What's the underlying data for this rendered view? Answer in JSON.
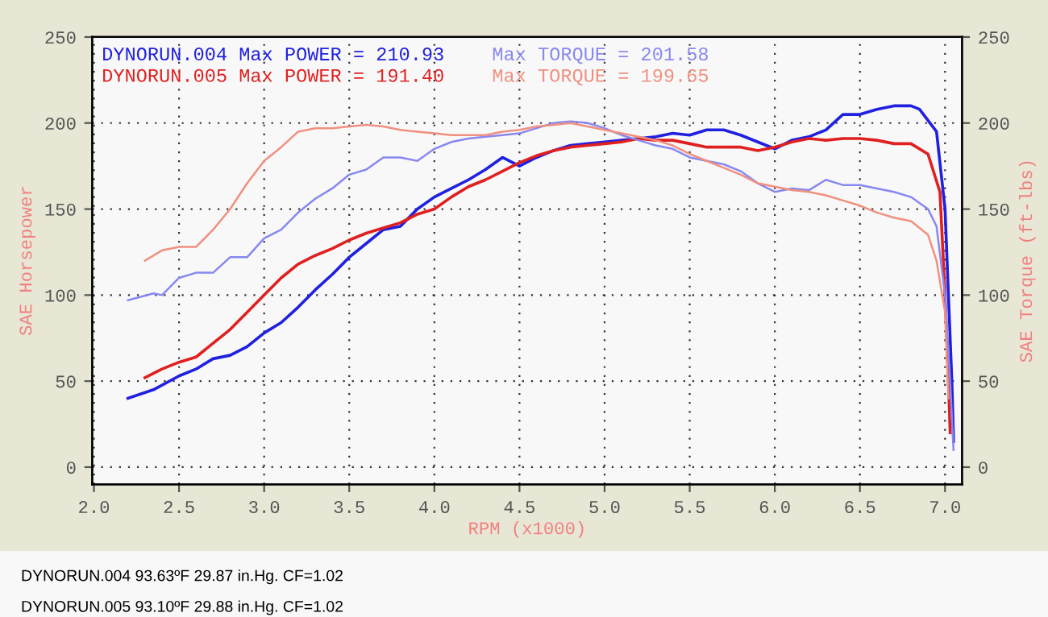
{
  "chart_data": {
    "type": "line",
    "xlabel": "RPM (x1000)",
    "ylabel": "SAE Horsepower",
    "y2label": "SAE Torque (ft-lbs)",
    "xlim": [
      1.99,
      7.1
    ],
    "ylim": [
      -10,
      250
    ],
    "y2lim": [
      -10,
      250
    ],
    "xticks": [
      {
        "value": 2,
        "label": "2.0"
      },
      {
        "value": 2.5,
        "label": "2.5"
      },
      {
        "value": 3,
        "label": "3.0"
      },
      {
        "value": 3.5,
        "label": "3.5"
      },
      {
        "value": 4,
        "label": "4.0"
      },
      {
        "value": 4.5,
        "label": "4.5"
      },
      {
        "value": 5,
        "label": "5.0"
      },
      {
        "value": 5.5,
        "label": "5.5"
      },
      {
        "value": 6,
        "label": "6.0"
      },
      {
        "value": 6.5,
        "label": "6.5"
      },
      {
        "value": 7,
        "label": "7.0"
      }
    ],
    "yticks": [
      0,
      50,
      100,
      150,
      200,
      250
    ],
    "y2ticks": [
      0,
      50,
      100,
      150,
      200,
      250
    ],
    "grid": true,
    "legend": "top left",
    "line_style": "solid",
    "marker": "none",
    "series": [
      {
        "name": "DYNORUN.004 Max POWER = 210.93",
        "color": "#2020e0",
        "x": [
          2.2,
          2.35,
          2.5,
          2.6,
          2.7,
          2.8,
          2.9,
          3.0,
          3.1,
          3.2,
          3.3,
          3.4,
          3.5,
          3.6,
          3.7,
          3.8,
          3.9,
          4.0,
          4.1,
          4.2,
          4.3,
          4.4,
          4.5,
          4.6,
          4.7,
          4.8,
          4.9,
          5.0,
          5.1,
          5.2,
          5.3,
          5.4,
          5.5,
          5.6,
          5.7,
          5.8,
          5.9,
          6.0,
          6.1,
          6.2,
          6.3,
          6.4,
          6.5,
          6.6,
          6.7,
          6.8,
          6.85,
          6.95,
          7.0,
          7.02,
          7.04,
          7.05
        ],
        "values": [
          40,
          45,
          53,
          57,
          63,
          65,
          70,
          78,
          84,
          93,
          103,
          112,
          122,
          130,
          138,
          140,
          150,
          157,
          162,
          167,
          173,
          180,
          175,
          180,
          184,
          187,
          188,
          189,
          190,
          191,
          192,
          194,
          193,
          196,
          196,
          193,
          189,
          185,
          190,
          192,
          196,
          205,
          205,
          208,
          210,
          210,
          208,
          195,
          150,
          100,
          50,
          15
        ]
      },
      {
        "name": "DYNORUN.005 Max POWER = 191.40",
        "color": "#e02020",
        "x": [
          2.3,
          2.4,
          2.5,
          2.6,
          2.7,
          2.8,
          2.9,
          3.0,
          3.1,
          3.2,
          3.3,
          3.4,
          3.5,
          3.6,
          3.7,
          3.8,
          3.9,
          4.0,
          4.1,
          4.2,
          4.3,
          4.4,
          4.5,
          4.6,
          4.7,
          4.8,
          4.9,
          5.0,
          5.1,
          5.2,
          5.3,
          5.4,
          5.5,
          5.6,
          5.7,
          5.8,
          5.9,
          6.0,
          6.1,
          6.2,
          6.3,
          6.4,
          6.5,
          6.6,
          6.7,
          6.8,
          6.9,
          6.97,
          7.0,
          7.02,
          7.03
        ],
        "values": [
          52,
          57,
          61,
          64,
          72,
          80,
          90,
          100,
          110,
          118,
          123,
          127,
          132,
          136,
          139,
          142,
          147,
          150,
          157,
          163,
          167,
          172,
          177,
          181,
          184,
          186,
          187,
          188,
          189,
          191,
          190,
          190,
          188,
          186,
          186,
          186,
          184,
          186,
          189,
          191,
          190,
          191,
          191,
          190,
          188,
          188,
          182,
          160,
          100,
          50,
          20
        ]
      },
      {
        "name": "Max TORQUE = 201.58",
        "color": "#8888f0",
        "axis": "y2",
        "x": [
          2.2,
          2.35,
          2.4,
          2.5,
          2.6,
          2.7,
          2.8,
          2.9,
          3.0,
          3.1,
          3.2,
          3.3,
          3.4,
          3.5,
          3.6,
          3.7,
          3.8,
          3.9,
          4.0,
          4.1,
          4.2,
          4.3,
          4.4,
          4.5,
          4.6,
          4.7,
          4.8,
          4.9,
          5.0,
          5.1,
          5.2,
          5.3,
          5.4,
          5.5,
          5.6,
          5.7,
          5.8,
          5.9,
          6.0,
          6.1,
          6.2,
          6.3,
          6.4,
          6.5,
          6.6,
          6.7,
          6.8,
          6.9,
          6.95,
          7.0,
          7.03,
          7.05
        ],
        "values": [
          97,
          101,
          100,
          110,
          113,
          113,
          122,
          122,
          133,
          138,
          148,
          156,
          162,
          170,
          173,
          180,
          180,
          178,
          185,
          189,
          191,
          192,
          193,
          194,
          197,
          200,
          201,
          200,
          197,
          193,
          190,
          187,
          185,
          180,
          178,
          176,
          172,
          165,
          160,
          162,
          161,
          167,
          164,
          164,
          162,
          160,
          157,
          150,
          140,
          100,
          50,
          10
        ]
      },
      {
        "name": "Max TORQUE = 199.65",
        "color": "#f09080",
        "axis": "y2",
        "x": [
          2.3,
          2.4,
          2.5,
          2.6,
          2.7,
          2.8,
          2.9,
          3.0,
          3.1,
          3.2,
          3.3,
          3.4,
          3.5,
          3.6,
          3.7,
          3.8,
          3.9,
          4.0,
          4.1,
          4.2,
          4.3,
          4.4,
          4.5,
          4.6,
          4.7,
          4.8,
          4.9,
          5.0,
          5.1,
          5.2,
          5.3,
          5.4,
          5.5,
          5.6,
          5.7,
          5.8,
          5.9,
          6.0,
          6.1,
          6.2,
          6.3,
          6.4,
          6.5,
          6.6,
          6.7,
          6.8,
          6.9,
          6.95,
          7.0,
          7.02
        ],
        "values": [
          120,
          126,
          128,
          128,
          138,
          150,
          165,
          178,
          186,
          195,
          197,
          197,
          198,
          199,
          198,
          196,
          195,
          194,
          193,
          193,
          193,
          195,
          196,
          198,
          199,
          200,
          198,
          196,
          194,
          192,
          190,
          187,
          182,
          178,
          174,
          170,
          165,
          163,
          161,
          160,
          158,
          155,
          152,
          148,
          145,
          143,
          135,
          120,
          90,
          40
        ]
      }
    ],
    "annotations": [
      "DYNORUN.004 93.63ºF 29.87 in.Hg. CF=1.02",
      "DYNORUN.005 93.10ºF 29.88 in.Hg. CF=1.02"
    ]
  }
}
